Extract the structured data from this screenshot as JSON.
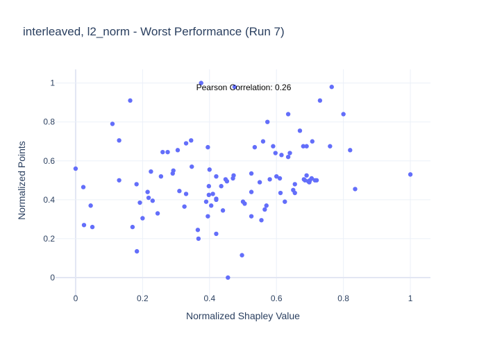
{
  "chart_data": {
    "type": "scatter",
    "title": "interleaved, l2_norm - Worst Performance (Run 7)",
    "xlabel": "Normalized Shapley Value",
    "ylabel": "Normalized Points",
    "xlim": [
      -0.06,
      1.06
    ],
    "ylim": [
      -0.1,
      1.07
    ],
    "x_ticks": [
      0,
      0.2,
      0.4,
      0.6,
      0.8,
      1
    ],
    "x_tick_labels": [
      "0",
      "0.2",
      "0.4",
      "0.6",
      "0.8",
      "1"
    ],
    "y_ticks": [
      0,
      0.2,
      0.4,
      0.6,
      0.8,
      1
    ],
    "y_tick_labels": [
      "0",
      "0.2",
      "0.4",
      "0.6",
      "0.8",
      "1"
    ],
    "grid": true,
    "marker_color": "#636efa",
    "annotation": "Pearson Correlation: 0.26",
    "points": [
      [
        0.0,
        0.56
      ],
      [
        0.023,
        0.465
      ],
      [
        0.025,
        0.27
      ],
      [
        0.045,
        0.37
      ],
      [
        0.05,
        0.26
      ],
      [
        0.11,
        0.79
      ],
      [
        0.13,
        0.705
      ],
      [
        0.13,
        0.5
      ],
      [
        0.163,
        0.91
      ],
      [
        0.17,
        0.26
      ],
      [
        0.182,
        0.48
      ],
      [
        0.183,
        0.135
      ],
      [
        0.192,
        0.385
      ],
      [
        0.2,
        0.305
      ],
      [
        0.215,
        0.44
      ],
      [
        0.218,
        0.41
      ],
      [
        0.225,
        0.545
      ],
      [
        0.23,
        0.395
      ],
      [
        0.245,
        0.33
      ],
      [
        0.255,
        0.52
      ],
      [
        0.26,
        0.645
      ],
      [
        0.275,
        0.645
      ],
      [
        0.29,
        0.535
      ],
      [
        0.292,
        0.55
      ],
      [
        0.305,
        0.655
      ],
      [
        0.31,
        0.445
      ],
      [
        0.325,
        0.365
      ],
      [
        0.33,
        0.69
      ],
      [
        0.33,
        0.43
      ],
      [
        0.345,
        0.705
      ],
      [
        0.347,
        0.57
      ],
      [
        0.365,
        0.245
      ],
      [
        0.367,
        0.2
      ],
      [
        0.375,
        1.0
      ],
      [
        0.39,
        0.39
      ],
      [
        0.395,
        0.315
      ],
      [
        0.395,
        0.67
      ],
      [
        0.398,
        0.425
      ],
      [
        0.398,
        0.47
      ],
      [
        0.4,
        0.555
      ],
      [
        0.405,
        0.37
      ],
      [
        0.41,
        0.43
      ],
      [
        0.42,
        0.52
      ],
      [
        0.42,
        0.405
      ],
      [
        0.42,
        0.4
      ],
      [
        0.42,
        0.225
      ],
      [
        0.435,
        0.47
      ],
      [
        0.44,
        0.345
      ],
      [
        0.448,
        0.505
      ],
      [
        0.452,
        0.495
      ],
      [
        0.455,
        0.0
      ],
      [
        0.47,
        0.51
      ],
      [
        0.472,
        0.525
      ],
      [
        0.475,
        0.98
      ],
      [
        0.497,
        0.115
      ],
      [
        0.5,
        0.39
      ],
      [
        0.505,
        0.38
      ],
      [
        0.525,
        0.535
      ],
      [
        0.525,
        0.315
      ],
      [
        0.525,
        0.44
      ],
      [
        0.535,
        0.67
      ],
      [
        0.55,
        0.49
      ],
      [
        0.555,
        0.295
      ],
      [
        0.56,
        0.7
      ],
      [
        0.565,
        0.35
      ],
      [
        0.57,
        0.37
      ],
      [
        0.573,
        0.8
      ],
      [
        0.58,
        0.505
      ],
      [
        0.59,
        0.675
      ],
      [
        0.597,
        0.64
      ],
      [
        0.6,
        0.52
      ],
      [
        0.61,
        0.51
      ],
      [
        0.612,
        0.435
      ],
      [
        0.615,
        0.63
      ],
      [
        0.625,
        0.39
      ],
      [
        0.635,
        0.84
      ],
      [
        0.635,
        0.62
      ],
      [
        0.64,
        0.64
      ],
      [
        0.65,
        0.45
      ],
      [
        0.655,
        0.48
      ],
      [
        0.655,
        0.435
      ],
      [
        0.67,
        0.755
      ],
      [
        0.68,
        0.675
      ],
      [
        0.682,
        0.505
      ],
      [
        0.685,
        0.5
      ],
      [
        0.69,
        0.525
      ],
      [
        0.69,
        0.675
      ],
      [
        0.695,
        0.495
      ],
      [
        0.698,
        0.49
      ],
      [
        0.7,
        0.5
      ],
      [
        0.705,
        0.51
      ],
      [
        0.707,
        0.7
      ],
      [
        0.715,
        0.5
      ],
      [
        0.72,
        0.5
      ],
      [
        0.73,
        0.91
      ],
      [
        0.76,
        0.675
      ],
      [
        0.765,
        0.98
      ],
      [
        0.8,
        0.84
      ],
      [
        0.82,
        0.655
      ],
      [
        0.835,
        0.455
      ],
      [
        1.0,
        0.53
      ]
    ]
  }
}
